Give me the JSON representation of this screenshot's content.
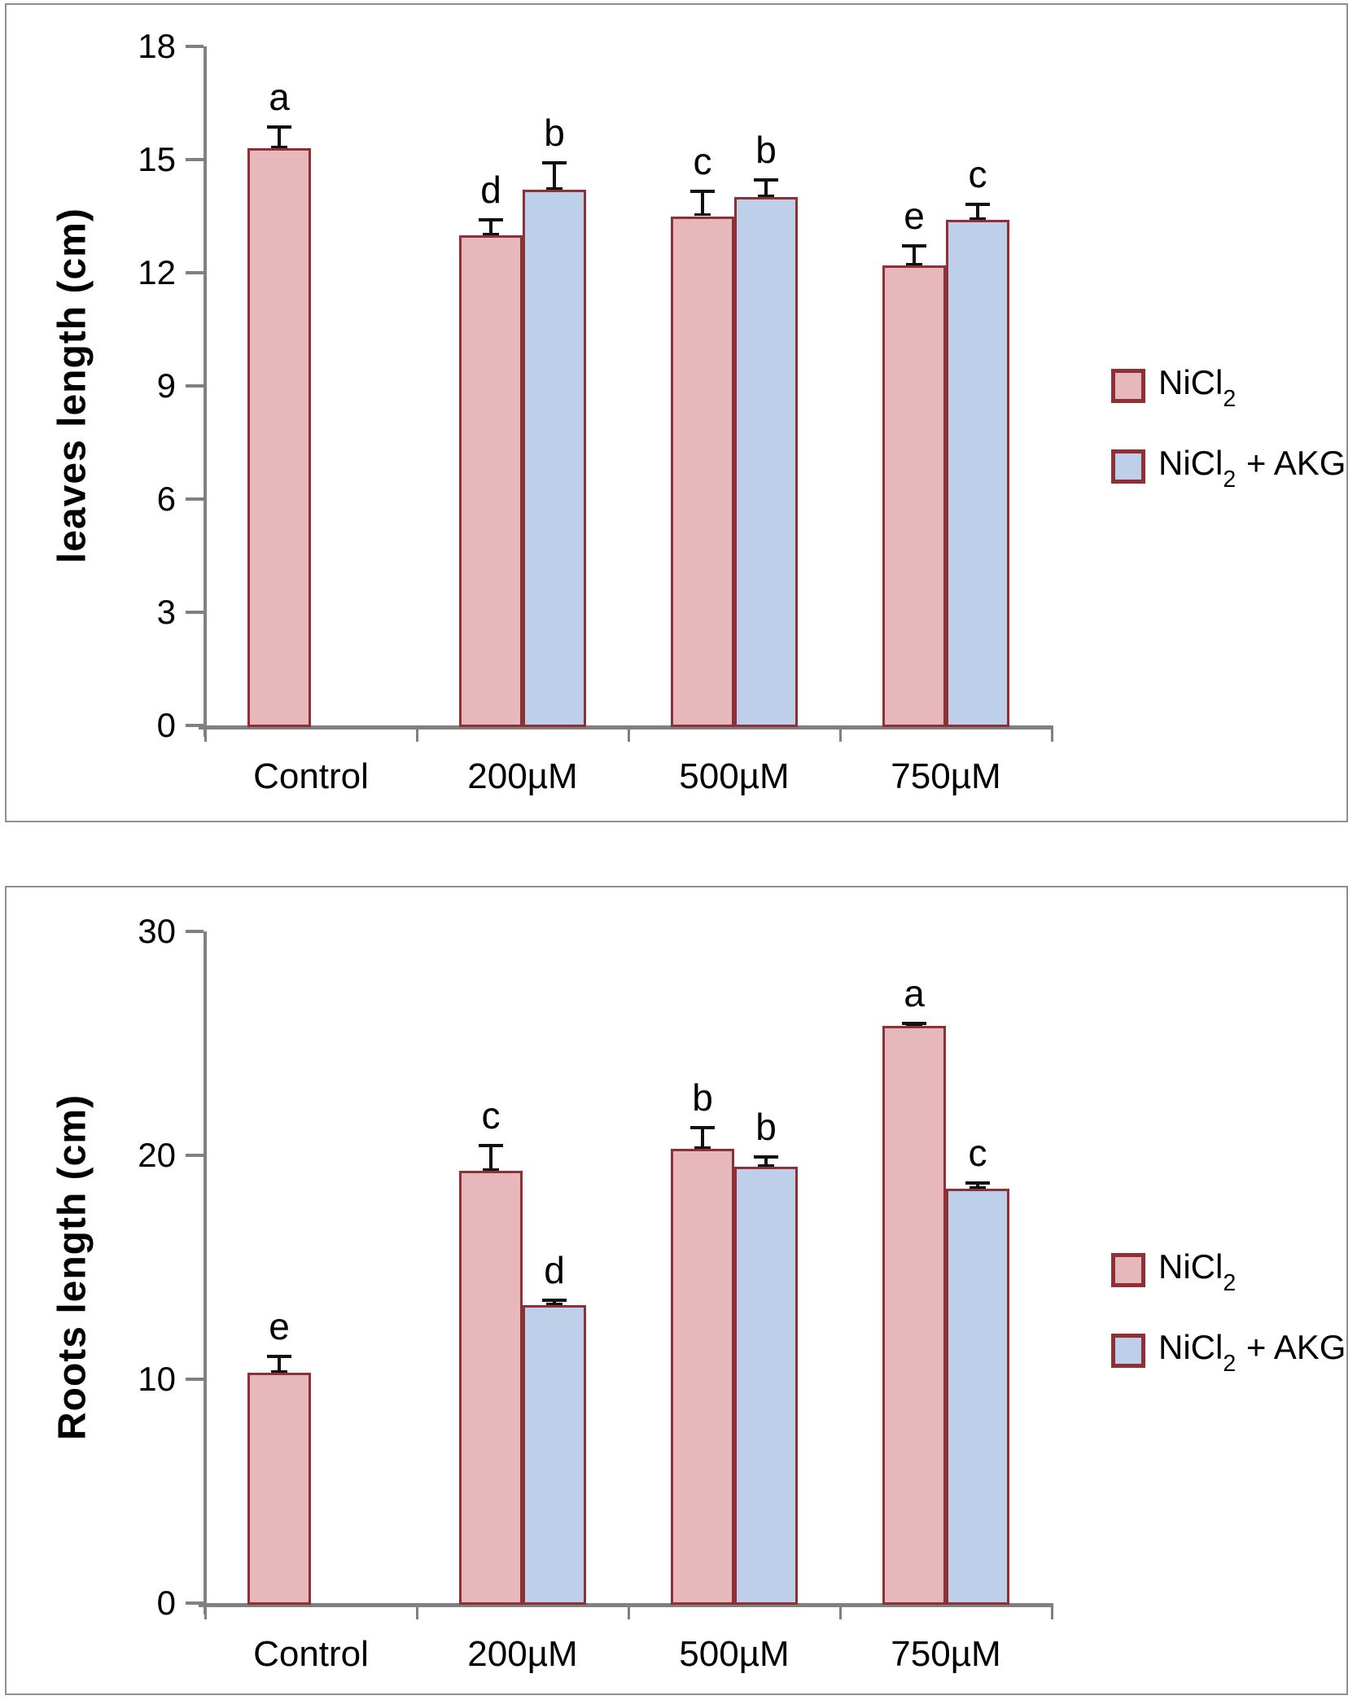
{
  "colors": {
    "pink_fill": "#e6b8bb",
    "blue_fill": "#bdcfe9",
    "bar_border": "#8f2f36",
    "axis_gray": "#808080",
    "error_bar": "#111111",
    "panel_border": "#8f8f8f",
    "text": "#000000"
  },
  "legend": {
    "items": [
      {
        "swatch": "pink",
        "base": "NiCl",
        "sub": "2",
        "suffix": ""
      },
      {
        "swatch": "blue",
        "base": "NiCl",
        "sub": "2",
        "suffix": " + AKG"
      }
    ]
  },
  "chart_data": [
    {
      "type": "bar",
      "title": "",
      "ylabel": "leaves length (cm)",
      "xlabel": "",
      "ylim": [
        0,
        18
      ],
      "yticks": [
        0,
        3,
        6,
        9,
        12,
        15,
        18
      ],
      "categories": [
        "Control",
        "200µM",
        "500µM",
        "750µM"
      ],
      "grid": false,
      "legend_position": "right",
      "series": [
        {
          "name": "NiCl2",
          "color_key": "pink_fill",
          "values": [
            15.3,
            13.0,
            13.5,
            12.2
          ],
          "errors": [
            0.6,
            0.45,
            0.7,
            0.55
          ],
          "letters": [
            "a",
            "d",
            "c",
            "e"
          ]
        },
        {
          "name": "NiCl2 + AKG",
          "color_key": "blue_fill",
          "values": [
            null,
            14.2,
            14.0,
            13.4
          ],
          "errors": [
            null,
            0.75,
            0.5,
            0.45
          ],
          "letters": [
            "",
            "b",
            "b",
            "c"
          ]
        }
      ]
    },
    {
      "type": "bar",
      "title": "",
      "ylabel": "Roots length (cm)",
      "xlabel": "",
      "ylim": [
        0,
        30
      ],
      "yticks": [
        0,
        10,
        20,
        30
      ],
      "categories": [
        "Control",
        "200µM",
        "500µM",
        "750µM"
      ],
      "grid": false,
      "legend_position": "right",
      "series": [
        {
          "name": "NiCl2",
          "color_key": "pink_fill",
          "values": [
            10.3,
            19.3,
            20.3,
            25.8
          ],
          "errors": [
            0.8,
            1.2,
            1.0,
            0.15
          ],
          "letters": [
            "e",
            "c",
            "b",
            "a"
          ]
        },
        {
          "name": "NiCl2 + AKG",
          "color_key": "blue_fill",
          "values": [
            null,
            13.3,
            19.5,
            18.5
          ],
          "errors": [
            null,
            0.3,
            0.5,
            0.35
          ],
          "letters": [
            "",
            "d",
            "b",
            "c"
          ]
        }
      ]
    }
  ]
}
